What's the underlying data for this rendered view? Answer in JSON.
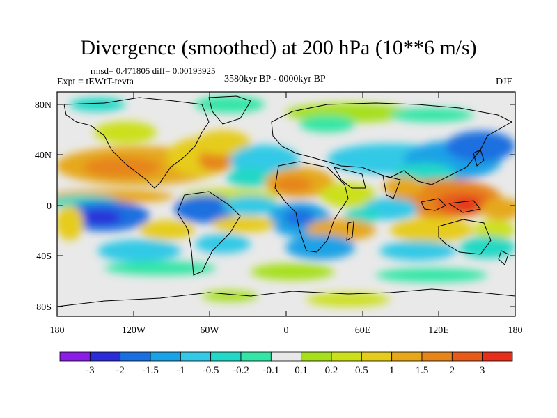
{
  "title": "Divergence (smoothed) at 200 hPa (10**6 m/s)",
  "stats": "rmsd= 0.471805 diff= 0.00193925",
  "experiment": "Expt = tEWtT-tevta",
  "period": "3580kyr BP - 0000kyr BP",
  "season": "DJF",
  "map": {
    "land_color": "#e9e9e9",
    "lat_ticks": [
      "80N",
      "40N",
      "0",
      "40S",
      "80S"
    ],
    "lon_ticks": [
      "180",
      "120W",
      "60W",
      "0",
      "60E",
      "120E",
      "180"
    ]
  },
  "colorbar": {
    "colors": [
      "#8a1de6",
      "#2b2bd9",
      "#1a6fe0",
      "#1aa2e6",
      "#33c9e6",
      "#22d8c6",
      "#33e6a6",
      "#e8e8e8",
      "#a6e01a",
      "#cce01a",
      "#e6cc1a",
      "#e6a81a",
      "#e6851a",
      "#e65a1a",
      "#e62e1a"
    ],
    "labels": [
      "-3",
      "-2",
      "-1.5",
      "-1",
      "-0.5",
      "-0.2",
      "-0.1",
      "0.1",
      "0.2",
      "0.5",
      "1",
      "1.5",
      "2",
      "3"
    ]
  }
}
